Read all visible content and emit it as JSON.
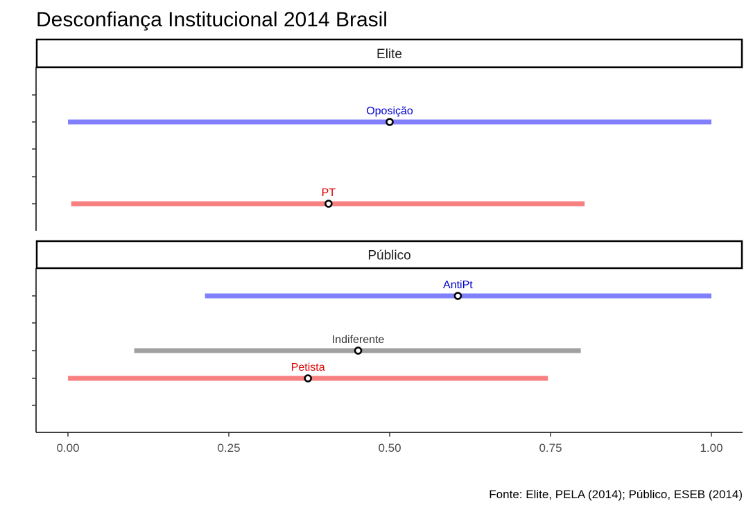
{
  "chart_data": {
    "type": "range",
    "title": "Desconfiança Institucional 2014 Brasil",
    "caption": "Fonte: Elite, PELA (2014); Público, ESEB (2014)",
    "xlim": [
      -0.05,
      1.05
    ],
    "x_ticks": [
      0,
      0.25,
      0.5,
      0.75,
      1.0
    ],
    "x_tick_labels": [
      "0.00",
      "0.25",
      "0.50",
      "0.75",
      "1.00"
    ],
    "colors": {
      "blue": "#8080ff",
      "red": "#f88080",
      "grey": "#a0a0a0"
    },
    "label_colors": {
      "blue": "#0000cc",
      "red": "#dd0000",
      "grey": "#333333"
    },
    "panels": [
      {
        "strip": "Elite",
        "rows": 5,
        "series": [
          {
            "label": "Oposição",
            "row": 4,
            "low": 0.0,
            "high": 1.0,
            "point": 0.5,
            "color": "blue"
          },
          {
            "label": "PT",
            "row": 1,
            "low": 0.005,
            "high": 0.803,
            "point": 0.405,
            "color": "red"
          }
        ]
      },
      {
        "strip": "Público",
        "rows": 5,
        "series": [
          {
            "label": "AntiPt",
            "row": 5,
            "low": 0.213,
            "high": 1.0,
            "point": 0.606,
            "color": "blue"
          },
          {
            "label": "Indiferente",
            "row": 3,
            "low": 0.103,
            "high": 0.797,
            "point": 0.451,
            "color": "grey"
          },
          {
            "label": "Petista",
            "row": 2,
            "low": 0.0,
            "high": 0.746,
            "point": 0.373,
            "color": "red"
          }
        ]
      }
    ]
  }
}
